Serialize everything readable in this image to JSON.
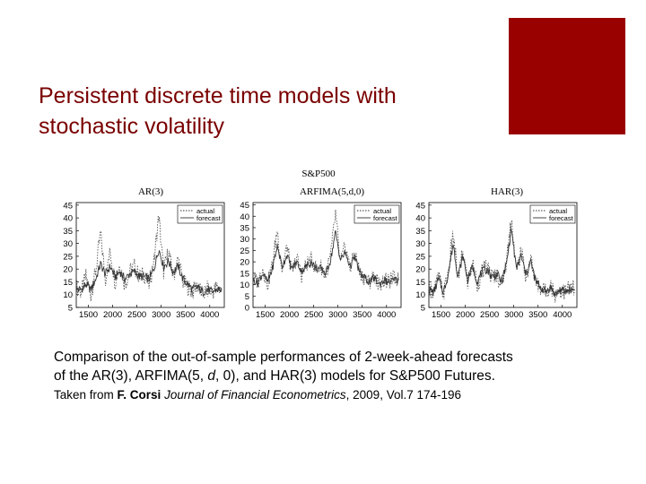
{
  "slide": {
    "title": "Persistent discrete time models with stochastic volatility",
    "accent_color": "#990000",
    "title_color": "#7a0000"
  },
  "figure": {
    "suptitle": "S&P500"
  },
  "caption": {
    "line1": "Comparison of the out-of-sample performances of 2-week-ahead forecasts",
    "line2_pre": "of the AR(3), ARFIMA(5, ",
    "line2_d": "d",
    "line2_post": ", 0), and HAR(3) models for S&P500 Futures."
  },
  "credit": {
    "prefix": "Taken from ",
    "author": "F. Corsi",
    "journal": "Journal of Financial Econometrics",
    "suffix": ", 2009, Vol.7 174-196"
  },
  "chart_data": [
    {
      "type": "line",
      "title": "AR(3)",
      "xticks": [
        1500,
        2000,
        2500,
        3000,
        3500,
        4000
      ],
      "yticks": [
        5,
        10,
        15,
        20,
        25,
        30,
        35,
        40,
        45
      ],
      "xlim": [
        1250,
        4300
      ],
      "ylim": [
        5,
        46
      ],
      "legend": "top-right",
      "series": [
        {
          "name": "actual",
          "style": "dotted",
          "x": [
            1250,
            1350,
            1450,
            1550,
            1650,
            1750,
            1850,
            1950,
            2050,
            2150,
            2250,
            2350,
            2450,
            2550,
            2650,
            2750,
            2850,
            2950,
            3050,
            3150,
            3250,
            3350,
            3450,
            3550,
            3650,
            3750,
            3850,
            3950,
            4050,
            4150,
            4250
          ],
          "values": [
            13,
            11,
            17,
            10,
            19,
            34,
            16,
            27,
            15,
            22,
            14,
            19,
            21,
            17,
            18,
            14,
            23,
            41,
            19,
            27,
            17,
            24,
            15,
            13,
            11,
            14,
            10,
            12,
            11,
            13,
            12
          ]
        },
        {
          "name": "forecast",
          "style": "solid",
          "x": [
            1250,
            1350,
            1450,
            1550,
            1650,
            1750,
            1850,
            1950,
            2050,
            2150,
            2250,
            2350,
            2450,
            2550,
            2650,
            2750,
            2850,
            2950,
            3050,
            3150,
            3250,
            3350,
            3450,
            3550,
            3650,
            3750,
            3850,
            3950,
            4050,
            4150,
            4250
          ],
          "values": [
            12,
            12,
            14,
            12,
            16,
            22,
            18,
            21,
            17,
            19,
            16,
            18,
            19,
            17,
            17,
            16,
            20,
            28,
            21,
            23,
            19,
            21,
            16,
            14,
            12,
            13,
            11,
            12,
            11,
            12,
            12
          ]
        }
      ]
    },
    {
      "type": "line",
      "title": "ARFIMA(5,d,0)",
      "xticks": [
        1500,
        2000,
        2500,
        3000,
        3500,
        4000
      ],
      "yticks": [
        0,
        5,
        10,
        15,
        20,
        25,
        30,
        35,
        40,
        45
      ],
      "xlim": [
        1250,
        4300
      ],
      "ylim": [
        0,
        46
      ],
      "legend": "top-right",
      "series": [
        {
          "name": "actual",
          "style": "dotted",
          "x": [
            1250,
            1350,
            1450,
            1550,
            1650,
            1750,
            1850,
            1950,
            2050,
            2150,
            2250,
            2350,
            2450,
            2550,
            2650,
            2750,
            2850,
            2950,
            3050,
            3150,
            3250,
            3350,
            3450,
            3550,
            3650,
            3750,
            3850,
            3950,
            4050,
            4150,
            4250
          ],
          "values": [
            13,
            11,
            17,
            10,
            19,
            34,
            16,
            27,
            15,
            22,
            14,
            19,
            21,
            17,
            18,
            14,
            23,
            41,
            19,
            27,
            17,
            24,
            15,
            13,
            11,
            14,
            10,
            12,
            11,
            13,
            12
          ]
        },
        {
          "name": "forecast",
          "style": "solid",
          "x": [
            1250,
            1350,
            1450,
            1550,
            1650,
            1750,
            1850,
            1950,
            2050,
            2150,
            2250,
            2350,
            2450,
            2550,
            2650,
            2750,
            2850,
            2950,
            3050,
            3150,
            3250,
            3350,
            3450,
            3550,
            3650,
            3750,
            3850,
            3950,
            4050,
            4150,
            4250
          ],
          "values": [
            12,
            11,
            15,
            11,
            17,
            27,
            18,
            23,
            17,
            20,
            16,
            18,
            20,
            17,
            17,
            15,
            21,
            33,
            21,
            24,
            18,
            22,
            15,
            13,
            11,
            13,
            10,
            12,
            11,
            12,
            12
          ]
        }
      ]
    },
    {
      "type": "line",
      "title": "HAR(3)",
      "xticks": [
        1500,
        2000,
        2500,
        3000,
        3500,
        4000
      ],
      "yticks": [
        5,
        10,
        15,
        20,
        25,
        30,
        35,
        40,
        45
      ],
      "xlim": [
        1250,
        4300
      ],
      "ylim": [
        5,
        46
      ],
      "legend": "top-right",
      "series": [
        {
          "name": "actual",
          "style": "dotted",
          "x": [
            1250,
            1350,
            1450,
            1550,
            1650,
            1750,
            1850,
            1950,
            2050,
            2150,
            2250,
            2350,
            2450,
            2550,
            2650,
            2750,
            2850,
            2950,
            3050,
            3150,
            3250,
            3350,
            3450,
            3550,
            3650,
            3750,
            3850,
            3950,
            4050,
            4150,
            4250
          ],
          "values": [
            13,
            11,
            17,
            10,
            19,
            34,
            16,
            27,
            15,
            22,
            14,
            19,
            21,
            17,
            18,
            14,
            23,
            41,
            19,
            27,
            17,
            24,
            15,
            13,
            11,
            14,
            10,
            12,
            11,
            13,
            12
          ]
        },
        {
          "name": "forecast",
          "style": "solid",
          "x": [
            1250,
            1350,
            1450,
            1550,
            1650,
            1750,
            1850,
            1950,
            2050,
            2150,
            2250,
            2350,
            2450,
            2550,
            2650,
            2750,
            2850,
            2950,
            3050,
            3150,
            3250,
            3350,
            3450,
            3550,
            3650,
            3750,
            3850,
            3950,
            4050,
            4150,
            4250
          ],
          "values": [
            12,
            11,
            16,
            11,
            18,
            30,
            17,
            25,
            16,
            21,
            15,
            19,
            20,
            17,
            18,
            15,
            22,
            36,
            20,
            25,
            18,
            23,
            15,
            13,
            11,
            13,
            10,
            12,
            11,
            12,
            12
          ]
        }
      ]
    }
  ]
}
